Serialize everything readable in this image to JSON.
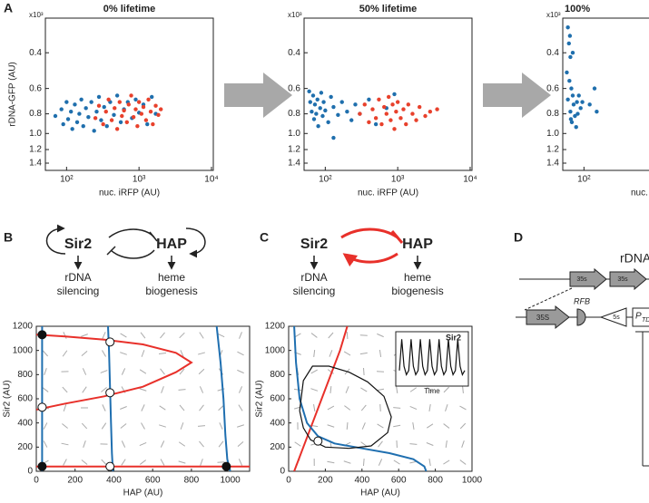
{
  "panel_labels": [
    "A",
    "B",
    "C",
    "D"
  ],
  "scatter_panels": [
    {
      "title": "0% lifetime",
      "x_label": "nuc. iRFP (AU)",
      "y_label": "rDNA-GFP (AU)",
      "exponent_label": "x10³",
      "log_x": true,
      "log_y": true,
      "y_reversed": true,
      "xlim": [
        51,
        10600
      ],
      "ylim": [
        0.27,
        1.52
      ],
      "xticks": [
        {
          "value": 100,
          "label": "10²"
        },
        {
          "value": 1000,
          "label": "10³"
        },
        {
          "value": 10000,
          "label": "10⁴"
        }
      ],
      "yticks": [
        0.4,
        0.6,
        0.8,
        {
          "value": 1,
          "label": "1.0"
        },
        1.2,
        1.4
      ],
      "series": [
        {
          "color": "#1f6fad",
          "x": [
            70,
            85,
            90,
            100,
            105,
            115,
            120,
            130,
            140,
            150,
            160,
            170,
            185,
            200,
            220,
            240,
            260,
            280,
            300,
            330,
            360,
            400,
            450,
            500,
            560,
            620,
            700,
            800,
            900,
            1000,
            1150,
            1300,
            1500,
            1700
          ],
          "y": [
            0.82,
            0.76,
            0.9,
            0.7,
            0.85,
            0.78,
            0.95,
            0.72,
            0.88,
            0.8,
            0.68,
            0.92,
            0.75,
            0.83,
            0.7,
            0.97,
            0.78,
            0.66,
            0.86,
            0.74,
            0.92,
            0.7,
            0.81,
            0.65,
            0.88,
            0.76,
            0.7,
            0.84,
            0.68,
            0.79,
            0.72,
            0.9,
            0.66,
            0.8
          ]
        },
        {
          "color": "#e8412c",
          "x": [
            250,
            280,
            320,
            350,
            380,
            420,
            460,
            500,
            540,
            580,
            620,
            680,
            720,
            780,
            840,
            900,
            950,
            1000,
            1080,
            1150,
            1250,
            1350,
            1450,
            1550,
            1700,
            1850,
            2000
          ],
          "y": [
            0.84,
            0.73,
            0.9,
            0.78,
            0.68,
            0.86,
            0.75,
            0.95,
            0.7,
            0.82,
            0.77,
            0.88,
            0.72,
            0.65,
            0.83,
            0.76,
            0.92,
            0.7,
            0.8,
            0.74,
            0.86,
            0.68,
            0.78,
            0.9,
            0.73,
            0.81,
            0.76
          ]
        }
      ]
    },
    {
      "title": "50% lifetime",
      "x_label": "nuc. iRFP (AU)",
      "exponent_label": "x10³",
      "log_x": true,
      "log_y": true,
      "y_reversed": true,
      "xlim": [
        51,
        10600
      ],
      "ylim": [
        0.27,
        1.52
      ],
      "xticks": [
        {
          "value": 100,
          "label": "10²"
        },
        {
          "value": 1000,
          "label": "10³"
        },
        {
          "value": 10000,
          "label": "10⁴"
        }
      ],
      "yticks": [
        0.4,
        0.6,
        0.8,
        {
          "value": 1,
          "label": "1.0"
        },
        1.2,
        1.4
      ],
      "series": [
        {
          "color": "#1f6fad",
          "x": [
            60,
            62,
            65,
            68,
            70,
            72,
            75,
            78,
            80,
            85,
            88,
            92,
            95,
            100,
            110,
            120,
            130,
            150,
            170,
            200,
            230,
            260,
            300,
            400,
            500,
            700,
            900,
            130
          ],
          "y": [
            0.62,
            0.7,
            0.78,
            0.65,
            0.85,
            0.72,
            0.8,
            0.68,
            0.92,
            0.75,
            0.63,
            0.82,
            0.7,
            0.77,
            0.88,
            0.66,
            0.74,
            0.81,
            0.7,
            0.78,
            0.86,
            0.72,
            0.8,
            0.68,
            0.9,
            0.75,
            0.64,
            1.05
          ]
        },
        {
          "color": "#e8412c",
          "x": [
            300,
            350,
            400,
            450,
            500,
            550,
            600,
            650,
            700,
            750,
            800,
            850,
            900,
            950,
            1000,
            1100,
            1200,
            1300,
            1400,
            1600,
            1800,
            2000,
            2400,
            2800,
            3500
          ],
          "y": [
            0.8,
            0.72,
            0.88,
            0.76,
            0.84,
            0.68,
            0.9,
            0.74,
            0.8,
            0.66,
            0.86,
            0.72,
            0.95,
            0.78,
            0.7,
            0.84,
            0.76,
            0.9,
            0.72,
            0.8,
            0.86,
            0.74,
            0.82,
            0.78,
            0.76
          ]
        }
      ]
    },
    {
      "title": "100%",
      "x_label": "nuc.",
      "exponent_label": "x10³",
      "log_x": true,
      "log_y": true,
      "y_reversed": true,
      "xlim": [
        51,
        10600
      ],
      "ylim": [
        0.27,
        1.52
      ],
      "xticks": [
        {
          "value": 100,
          "label": "10²"
        }
      ],
      "yticks": [
        0.4,
        0.6,
        0.8,
        {
          "value": 1,
          "label": "1.0"
        },
        1.2,
        1.4
      ],
      "series": [
        {
          "color": "#1f6fad",
          "x": [
            60,
            62,
            65,
            58,
            63,
            67,
            70,
            60,
            72,
            65,
            75,
            68,
            78,
            80,
            85,
            90,
            70,
            64,
            95,
            120,
            140,
            150,
            82,
            66
          ],
          "y": [
            0.3,
            0.36,
            0.42,
            0.5,
            0.55,
            0.6,
            0.65,
            0.68,
            0.72,
            0.78,
            0.82,
            0.88,
            0.93,
            0.7,
            0.65,
            0.75,
            0.4,
            0.33,
            0.7,
            0.72,
            0.6,
            0.78,
            0.8,
            0.85
          ]
        }
      ]
    }
  ],
  "diagrams": [
    {
      "nodes": [
        "Sir2",
        "HAP"
      ],
      "outputs": [
        [
          "rDNA",
          "silencing"
        ],
        [
          "heme",
          "biogenesis"
        ]
      ]
    },
    {
      "nodes": [
        "Sir2",
        "HAP"
      ],
      "outputs": [
        [
          "rDNA",
          "silencing"
        ],
        [
          "heme",
          "biogenesis"
        ]
      ]
    }
  ],
  "phase_panels": [
    {
      "x_label": "HAP (AU)",
      "y_label": "Sir2 (AU)",
      "xlim": [
        0,
        1100
      ],
      "ylim": [
        0,
        1200
      ],
      "xticks": [
        0,
        200,
        400,
        600,
        800,
        1000
      ],
      "yticks": [
        0,
        200,
        400,
        600,
        800,
        1000,
        1200
      ],
      "curves": [
        {
          "color": "#e8302a",
          "x": [
            0,
            1100
          ],
          "y": [
            40,
            40
          ]
        },
        {
          "color": "#e8302a",
          "x": [
            0,
            150,
            350,
            550,
            720,
            800,
            720,
            550,
            350,
            150,
            0
          ],
          "y": [
            510,
            560,
            620,
            700,
            820,
            900,
            980,
            1050,
            1090,
            1115,
            1130
          ]
        },
        {
          "color": "#1f6fb0",
          "x": [
            30,
            30
          ],
          "y": [
            0,
            1200
          ]
        },
        {
          "color": "#1f6fb0",
          "x": [
            370,
            375,
            380,
            385,
            390,
            395
          ],
          "y": [
            1200,
            1000,
            700,
            400,
            150,
            0
          ]
        },
        {
          "color": "#1f6fb0",
          "x": [
            930,
            950,
            965,
            975,
            985,
            1000
          ],
          "y": [
            1200,
            900,
            600,
            300,
            100,
            0
          ]
        }
      ],
      "fixed_points": [
        {
          "x": 30,
          "y": 1130,
          "stable": true
        },
        {
          "x": 30,
          "y": 40,
          "stable": true
        },
        {
          "x": 980,
          "y": 40,
          "stable": true
        },
        {
          "x": 380,
          "y": 1070,
          "stable": false
        },
        {
          "x": 380,
          "y": 650,
          "stable": false
        },
        {
          "x": 30,
          "y": 530,
          "stable": false
        },
        {
          "x": 380,
          "y": 40,
          "stable": false
        }
      ]
    },
    {
      "x_label": "HAP (AU)",
      "y_label": "Sir2 (AU)",
      "xlim": [
        0,
        1000
      ],
      "ylim": [
        0,
        1200
      ],
      "xticks": [
        0,
        200,
        400,
        600,
        800,
        1000
      ],
      "yticks": [
        0,
        200,
        400,
        600,
        800,
        1000,
        1200
      ],
      "curves": [
        {
          "color": "#e8302a",
          "x": [
            30,
            80,
            130,
            180,
            230,
            280,
            320
          ],
          "y": [
            0,
            200,
            400,
            600,
            800,
            1000,
            1200
          ]
        },
        {
          "color": "#1f6fb0",
          "x": [
            30,
            40,
            60,
            100,
            160,
            250,
            400,
            550,
            680,
            740,
            750
          ],
          "y": [
            1200,
            900,
            600,
            400,
            290,
            230,
            190,
            150,
            100,
            40,
            0
          ]
        },
        {
          "color": "#111111",
          "x": [
            60,
            80,
            130,
            220,
            330,
            430,
            520,
            560,
            540,
            450,
            330,
            200,
            120,
            80,
            60
          ],
          "y": [
            500,
            750,
            870,
            870,
            820,
            740,
            620,
            450,
            320,
            210,
            190,
            200,
            260,
            360,
            500
          ]
        }
      ],
      "fixed_points": [
        {
          "x": 160,
          "y": 250,
          "stable": false
        }
      ],
      "inset": {
        "title": "Sir2",
        "x_label": "Time",
        "ylim": [
          0,
          1
        ],
        "values": [
          0.2,
          0.95,
          0.3,
          0.1,
          0.2,
          0.95,
          0.3,
          0.1,
          0.2,
          0.95,
          0.3,
          0.1,
          0.2,
          0.95,
          0.3,
          0.1,
          0.2,
          0.95,
          0.3,
          0.1,
          0.2,
          0.95,
          0.3,
          0.1,
          0.2,
          0.95,
          0.3,
          0.1,
          0.2
        ]
      }
    }
  ],
  "panel_d": {
    "title": "rDNA",
    "labels": [
      "35s",
      "35s",
      "35S",
      "RFB",
      "5s",
      "P",
      "TD"
    ]
  }
}
